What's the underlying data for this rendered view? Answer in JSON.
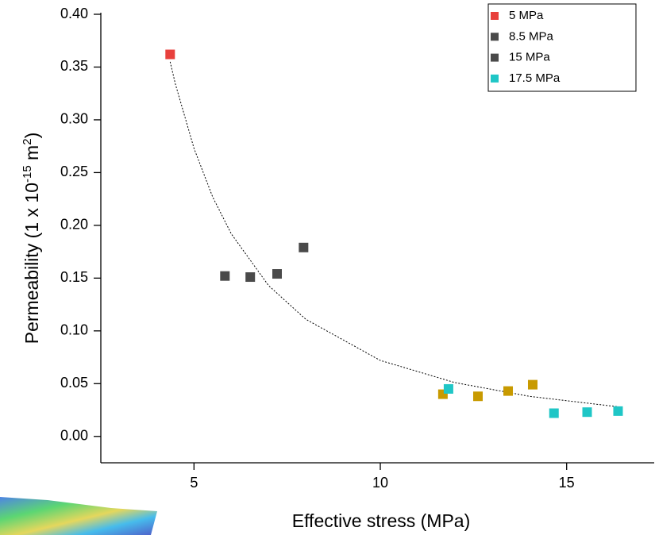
{
  "chart_data": {
    "type": "scatter",
    "xlabel": "Effective stress (MPa)",
    "ylabel": [
      "Permeability (1 x 10",
      "-15",
      " m",
      "2",
      ")"
    ],
    "xlim": [
      2.5,
      17.35
    ],
    "ylim": [
      -0.025,
      0.4
    ],
    "xticks": [
      5,
      10,
      15
    ],
    "yticks": [
      {
        "value": 0,
        "label": "0.00"
      },
      {
        "value": 0.05,
        "label": "0.05"
      },
      {
        "value": 0.1,
        "label": "0.10"
      },
      {
        "value": 0.15,
        "label": "0.15"
      },
      {
        "value": 0.2,
        "label": "0.20"
      },
      {
        "value": 0.25,
        "label": "0.25"
      },
      {
        "value": 0.3,
        "label": "0.30"
      },
      {
        "value": 0.35,
        "label": "0.35"
      },
      {
        "value": 0.4,
        "label": "0.40"
      }
    ],
    "legend": "upper right",
    "series": [
      {
        "name": "5 MPa",
        "color": "#e8403c",
        "x": [
          4.36
        ],
        "values": [
          0.362
        ]
      },
      {
        "name": "8.5 MPa",
        "color": "#4a4a4a",
        "x": [
          5.83,
          6.51,
          7.23,
          7.94
        ],
        "values": [
          0.152,
          0.151,
          0.154,
          0.179
        ]
      },
      {
        "name": "15 MPa",
        "color": "#c89a00",
        "legend_color": "#4a4a4a",
        "x": [
          11.68,
          12.62,
          13.43,
          14.09
        ],
        "values": [
          0.04,
          0.038,
          0.043,
          0.049
        ]
      },
      {
        "name": "17.5 MPa",
        "color": "#1fc6c6",
        "x": [
          11.83,
          14.66,
          15.55,
          16.38
        ],
        "values": [
          0.045,
          0.022,
          0.023,
          0.024
        ]
      }
    ],
    "fit": {
      "color": "#000000",
      "x": [
        4.36,
        4.5,
        5,
        5.5,
        6,
        7,
        8,
        10,
        12,
        14,
        16.4
      ],
      "values": [
        0.355,
        0.334,
        0.273,
        0.227,
        0.192,
        0.143,
        0.111,
        0.072,
        0.051,
        0.038,
        0.028
      ]
    }
  }
}
